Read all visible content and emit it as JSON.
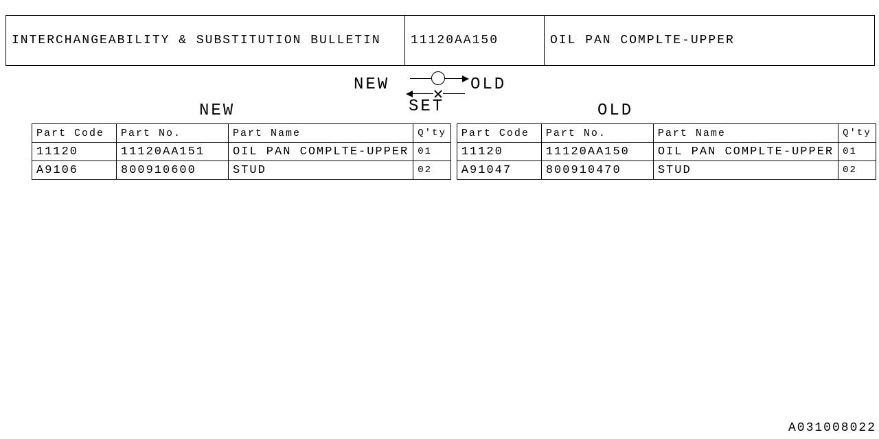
{
  "header": {
    "title": "INTERCHANGEABILITY & SUBSTITUTION BULLETIN",
    "part_no": "11120AA150",
    "part_name": "OIL PAN COMPLTE-UPPER"
  },
  "diagram": {
    "left_label": "NEW",
    "right_label": "OLD",
    "bottom_label": "SET"
  },
  "sections": {
    "new_label": "NEW",
    "old_label": "OLD"
  },
  "table": {
    "columns": [
      "Part Code",
      "Part No.",
      "Part Name",
      "Q'ty"
    ],
    "new_rows": [
      {
        "code": "11120",
        "no": "11120AA151",
        "name": "OIL PAN COMPLTE-UPPER",
        "qty": "01"
      },
      {
        "code": "A9106",
        "no": "800910600",
        "name": "STUD",
        "qty": "02"
      }
    ],
    "old_rows": [
      {
        "code": "11120",
        "no": "11120AA150",
        "name": "OIL PAN COMPLTE-UPPER",
        "qty": "01"
      },
      {
        "code": "A91047",
        "no": "800910470",
        "name": "STUD",
        "qty": "02"
      }
    ]
  },
  "footer": "A031008022"
}
